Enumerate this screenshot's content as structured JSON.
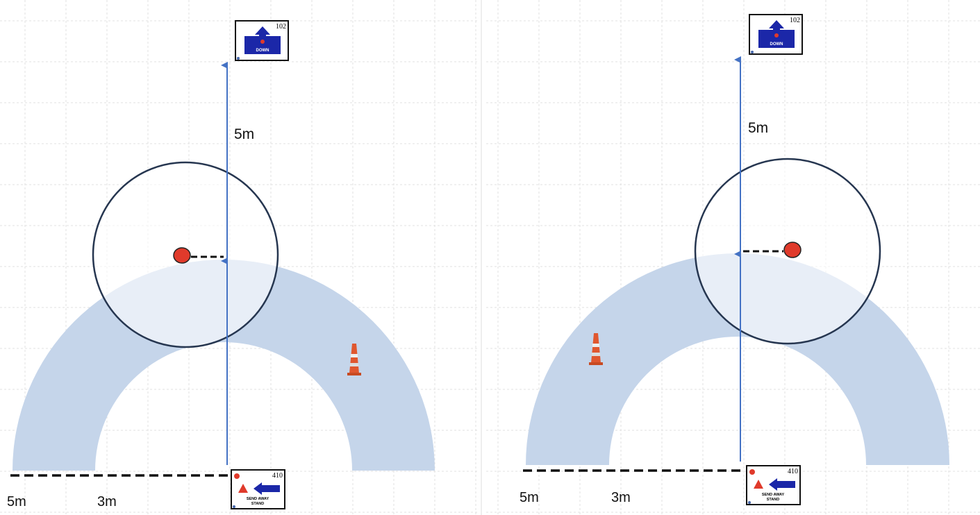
{
  "panels": [
    {
      "top_sign": {
        "number": "102",
        "label": "DOWN"
      },
      "distance_label": "5m",
      "bottom_sign": {
        "number": "410",
        "label_lines": [
          "SEND AWAY",
          "STAND"
        ]
      },
      "scale_labels": [
        "5m",
        "3m"
      ]
    },
    {
      "top_sign": {
        "number": "102",
        "label": "DOWN"
      },
      "distance_label": "5m",
      "bottom_sign": {
        "number": "410",
        "label_lines": [
          "SEND AWAY",
          "STAND"
        ]
      },
      "scale_labels": [
        "5m",
        "3m"
      ]
    }
  ]
}
